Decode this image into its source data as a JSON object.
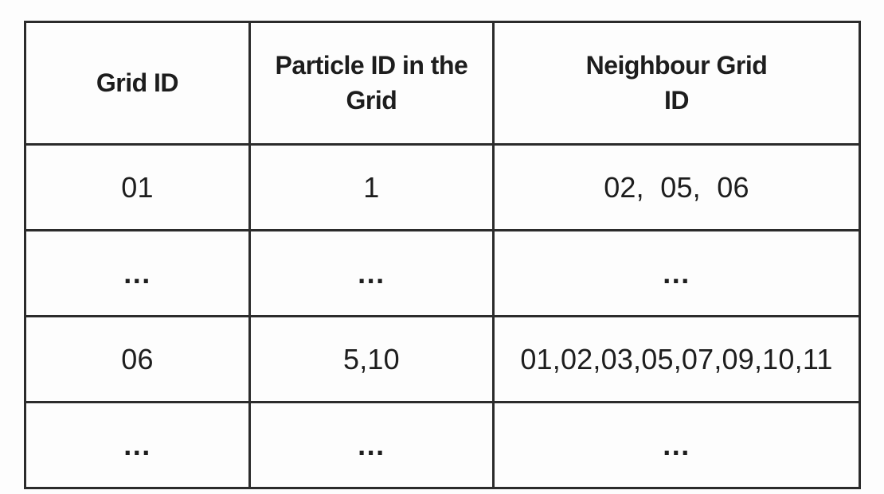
{
  "figure": {
    "type": "table",
    "background_color": "#fdfdfd",
    "border_color": "#2b2b2b",
    "text_color": "#1d1d1d"
  },
  "table": {
    "headers": [
      "Grid ID",
      "Particle ID in the\nGrid",
      "Neighbour Grid\nID"
    ],
    "rows": [
      {
        "cells": [
          "01",
          "1",
          "02,  05,  06"
        ]
      },
      {
        "cells": [
          "...",
          "...",
          "..."
        ]
      },
      {
        "cells": [
          "06",
          "5,10",
          "01,02,03,05,07,09,10,11"
        ]
      },
      {
        "cells": [
          "...",
          "...",
          "..."
        ]
      }
    ]
  }
}
